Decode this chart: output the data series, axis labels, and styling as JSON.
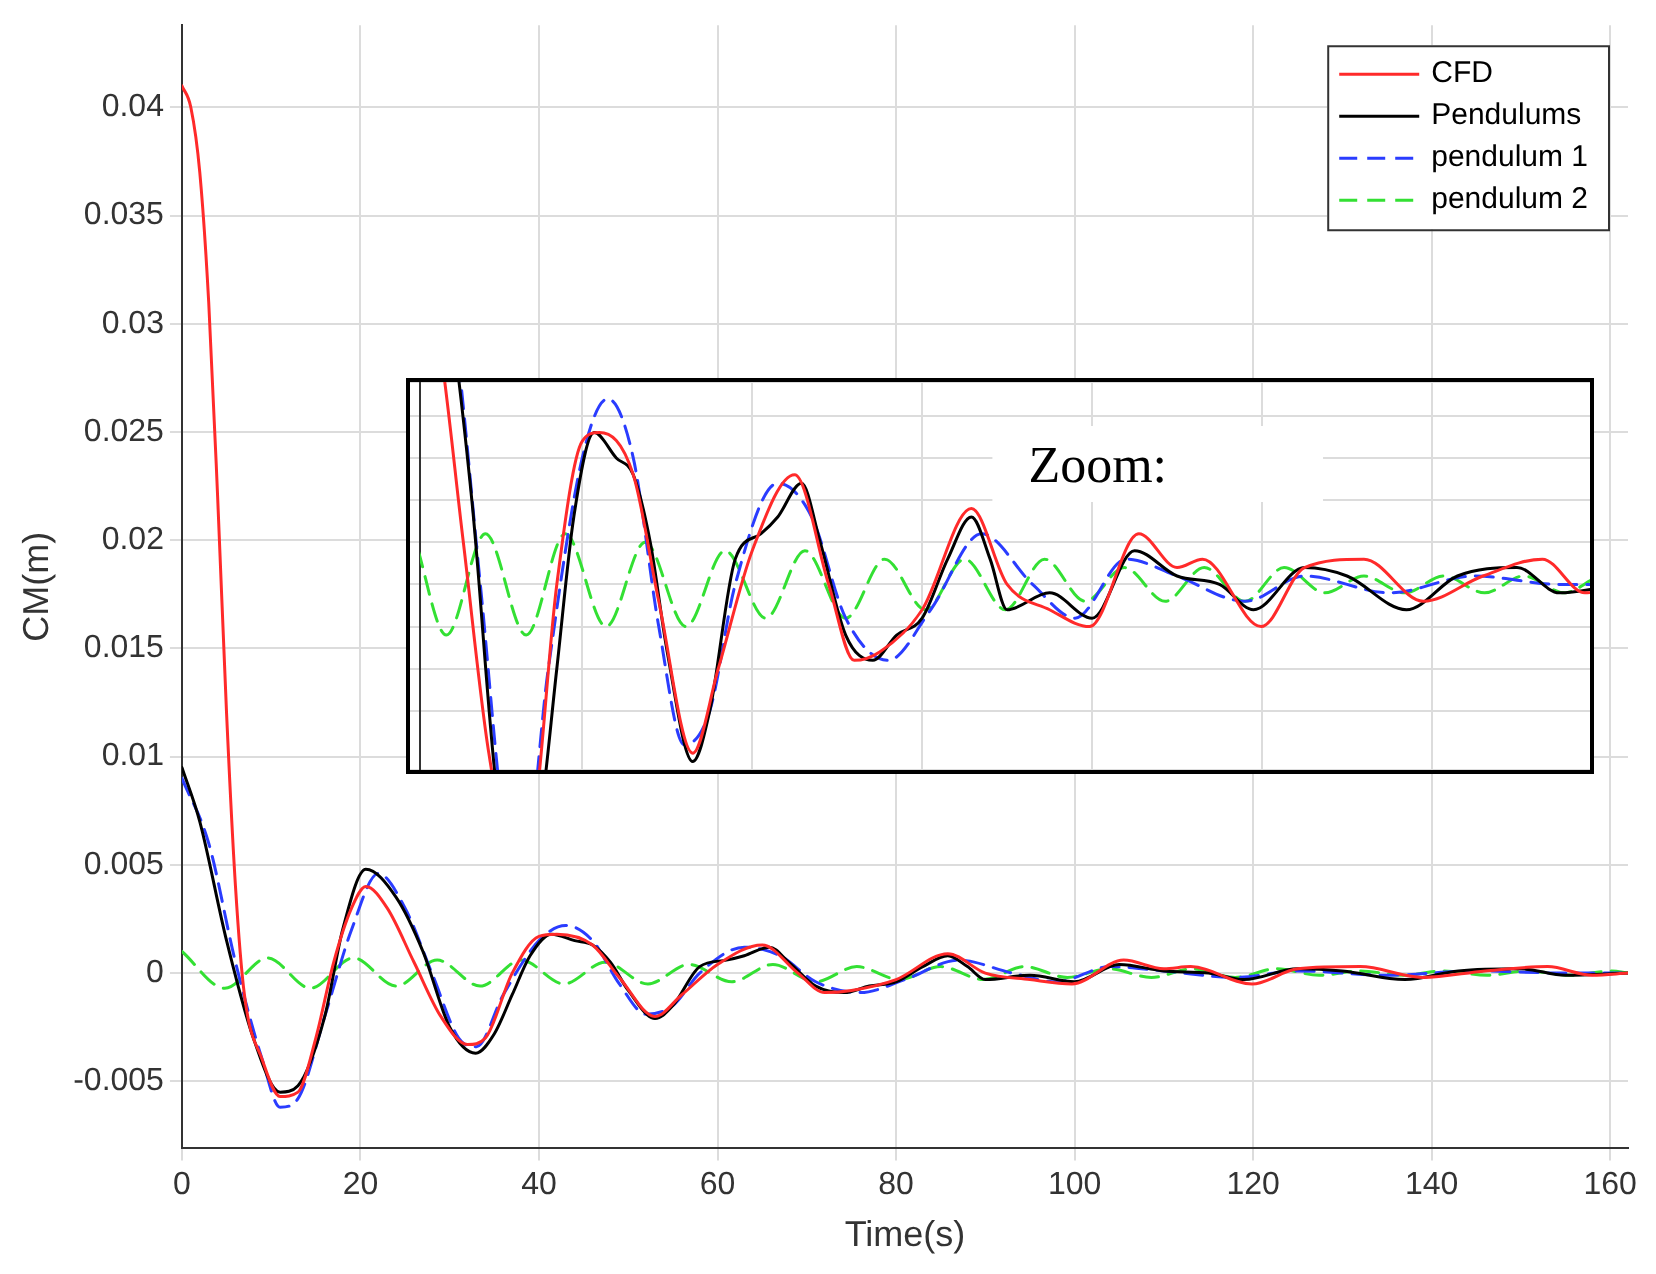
{
  "chart_data": [
    {
      "type": "line",
      "xlabel": "Time(s)",
      "ylabel": "CM(m)",
      "xlim": [
        0,
        162
      ],
      "ylim": [
        -0.0081,
        0.0438
      ],
      "xticks": [
        0,
        20,
        40,
        60,
        80,
        100,
        120,
        140,
        160
      ],
      "yticks": [
        -0.005,
        0,
        0.005,
        0.01,
        0.015,
        0.02,
        0.025,
        0.03,
        0.035,
        0.04
      ],
      "grid": true,
      "legend": "top right",
      "marker": "none",
      "series": [
        {
          "name": "CFD",
          "color": "#ff2a2a",
          "line_style": "solid",
          "x": [
            0,
            1,
            2,
            3,
            4,
            5,
            6,
            7,
            9,
            11,
            13,
            15,
            17,
            19,
            20.6,
            23,
            26,
            29,
            32,
            34,
            37,
            40,
            42,
            46,
            49,
            53,
            56,
            60,
            65,
            69,
            72,
            75,
            80,
            85.8,
            90,
            95,
            99.7,
            105.5,
            110,
            113,
            119.9,
            125,
            132,
            139,
            146,
            153,
            158,
            162
          ],
          "values": [
            0.041,
            0.04,
            0.037,
            0.031,
            0.022,
            0.012,
            0.004,
            -0.001,
            -0.004,
            -0.0057,
            -0.0055,
            -0.003,
            0.0005,
            0.003,
            0.004,
            0.003,
            0.0005,
            -0.002,
            -0.0033,
            -0.003,
            0,
            0.0017,
            0.0018,
            0.0013,
            -0.0002,
            -0.002,
            -0.001,
            0.0004,
            0.0013,
            0,
            -0.0009,
            -0.0008,
            -0.0003,
            0.0009,
            0,
            -0.0003,
            -0.0005,
            0.0006,
            0.0002,
            0.0003,
            -0.0005,
            0.0002,
            0.0003,
            -0.0002,
            0.0001,
            0.0003,
            -0.0001,
            0
          ]
        },
        {
          "name": "Pendulums",
          "color": "#000000",
          "line_style": "solid",
          "x": [
            0,
            2,
            5,
            8,
            11,
            13,
            16,
            18,
            20.6,
            24,
            27,
            30,
            32.9,
            35,
            37,
            39,
            41.4,
            44,
            46,
            48,
            50,
            53,
            55,
            58,
            61,
            63,
            65.8,
            68,
            71,
            74.2,
            77,
            80,
            83,
            85.8,
            88,
            90,
            95,
            100,
            105,
            110,
            115,
            119,
            125,
            130,
            137,
            143,
            150,
            155,
            162
          ],
          "values": [
            0.0095,
            0.007,
            0.0015,
            -0.003,
            -0.0055,
            -0.0052,
            -0.002,
            0.002,
            0.0048,
            0.0035,
            0.001,
            -0.0025,
            -0.0037,
            -0.0028,
            -0.001,
            0.0008,
            0.0018,
            0.0015,
            0.0013,
            0.0005,
            -0.0008,
            -0.0021,
            -0.0015,
            0.0003,
            0.0006,
            0.0008,
            0.0012,
            0.0005,
            -0.0006,
            -0.0009,
            -0.0006,
            -0.0004,
            0.0003,
            0.0008,
            0.0003,
            -0.0003,
            -0.0001,
            -0.0004,
            0.0004,
            0.0001,
            0,
            -0.0003,
            0.0002,
            0.0001,
            -0.0003,
            0.0001,
            0.0002,
            -0.0001,
            0
          ]
        },
        {
          "name": "pendulum 1",
          "color": "#2a3cff",
          "line_style": "dashed",
          "x": [
            0,
            3,
            6,
            9,
            11,
            13,
            16,
            19,
            22,
            25,
            28,
            31,
            33,
            36,
            40,
            43,
            46,
            49,
            52,
            55,
            58,
            63,
            67,
            71,
            76,
            81,
            87,
            93,
            98,
            104,
            110,
            118,
            125,
            135,
            145,
            155,
            162
          ],
          "values": [
            0.009,
            0.006,
            0.0005,
            -0.004,
            -0.0062,
            -0.0058,
            -0.002,
            0.002,
            0.0046,
            0.003,
            0,
            -0.003,
            -0.0034,
            -0.001,
            0.0015,
            0.0022,
            0.0015,
            -0.0005,
            -0.0019,
            -0.0015,
            0,
            0.0012,
            0.0008,
            -0.0004,
            -0.0009,
            -0.0003,
            0.0006,
            0,
            -0.0004,
            0.0003,
            0.0001,
            -0.0002,
            0.0001,
            -0.0001,
            0.0001,
            0,
            0
          ]
        },
        {
          "name": "pendulum 2",
          "color": "#33e033",
          "line_style": "dashed",
          "x": [
            0,
            4.8,
            9.6,
            14.4,
            19.2,
            24,
            28.6,
            33.4,
            38,
            42.8,
            47.4,
            52.2,
            56.8,
            61.6,
            66.2,
            71,
            75.6,
            80.4,
            85,
            89.8,
            94.4,
            99.2,
            103.8,
            108.6,
            113.2,
            118,
            122.6,
            127.4,
            132,
            136.8,
            141.4,
            146.2,
            150.8,
            155.6,
            160.2,
            162
          ],
          "values": [
            0.001,
            -0.0007,
            0.0007,
            -0.0007,
            0.0007,
            -0.0006,
            0.0006,
            -0.0006,
            0.0006,
            -0.0005,
            0.0005,
            -0.0005,
            0.0004,
            -0.0004,
            0.0004,
            -0.0004,
            0.0003,
            -0.0003,
            0.0003,
            -0.0003,
            0.0003,
            -0.0002,
            0.0002,
            -0.0002,
            0.0002,
            -0.0002,
            0.0002,
            -0.0001,
            0.0001,
            -0.0001,
            0.0001,
            -0.0001,
            0.0001,
            -0.0001,
            0.0001,
            0
          ]
        }
      ]
    },
    {
      "type": "other",
      "annotations": [
        "Zoom:"
      ]
    }
  ]
}
